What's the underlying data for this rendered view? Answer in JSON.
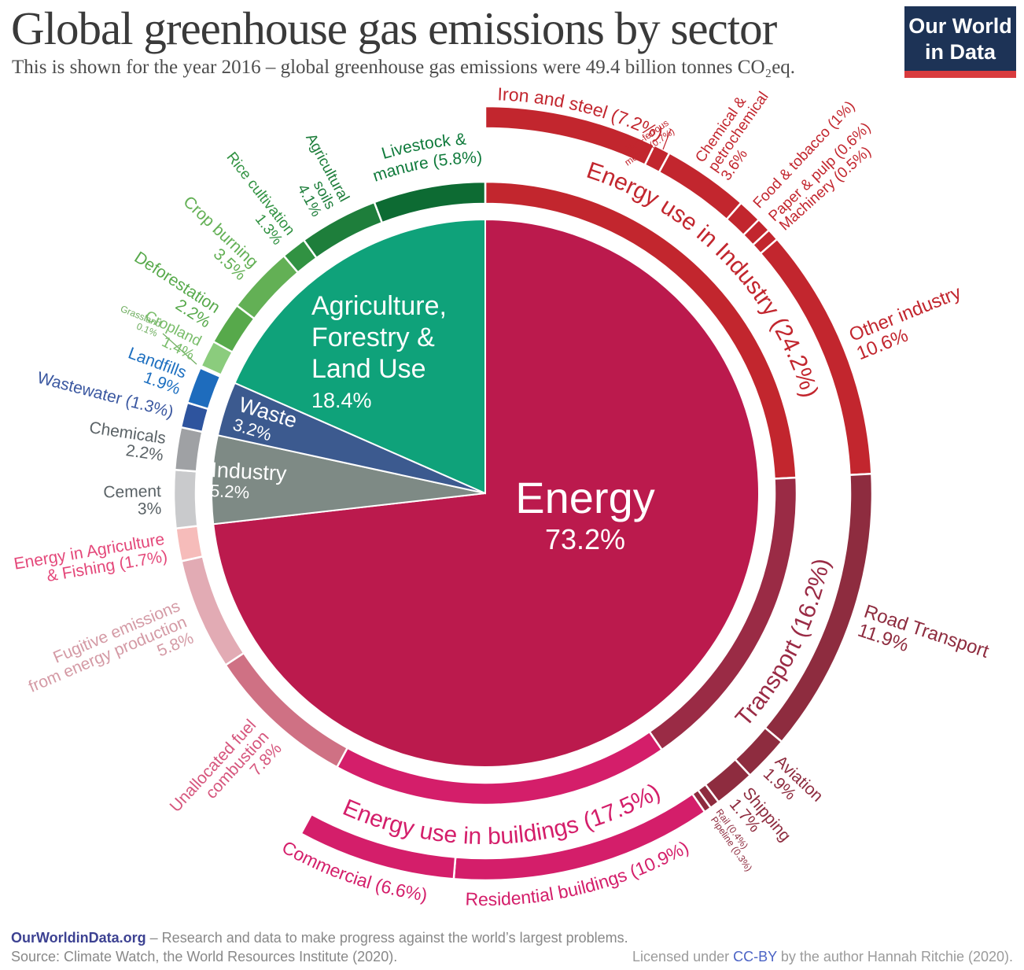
{
  "header": {
    "title": "Global greenhouse gas emissions by sector",
    "subtitle": "This is shown for the year 2016 – global greenhouse gas emissions were 49.4 billion tonnes CO₂eq.",
    "logo_line1": "Our World",
    "logo_line2": "in Data"
  },
  "footer": {
    "site": "OurWorldinData.org",
    "tagline": " – Research and data to make progress against the world’s largest problems.",
    "source": "Source: Climate Watch, the World Resources Institute (2020).",
    "license_pre": "Licensed under ",
    "license_link": "CC-BY",
    "license_post": " by the author Hannah Ritchie (2020)."
  },
  "chart_data": {
    "type": "pie",
    "title": "Global greenhouse gas emissions by sector",
    "year": "2016",
    "total": "49.4 billion tonnes CO₂eq",
    "unit": "%",
    "inner_sectors": [
      {
        "id": "energy",
        "label": "Energy",
        "value": 73.2,
        "color": "#bb1a4d",
        "display": [
          "Energy",
          "73.2%"
        ]
      },
      {
        "id": "industry",
        "label": "Industry",
        "value": 5.2,
        "color": "#7e8a85",
        "display": [
          "Industry",
          "5.2%"
        ]
      },
      {
        "id": "waste",
        "label": "Waste",
        "value": 3.2,
        "color": "#3c5a8f",
        "display": [
          "Waste",
          "3.2%"
        ]
      },
      {
        "id": "afolu",
        "label": "Agriculture, Forestry & Land Use",
        "value": 18.4,
        "color": "#0fa27a",
        "display": [
          "Agriculture,",
          "Forestry &",
          "Land Use",
          "18.4%"
        ]
      }
    ],
    "middle_ring": [
      {
        "id": "energy_industry",
        "group": "Energy",
        "label": "Energy use in Industry",
        "value": 24.2,
        "color": "#c2262e",
        "display": [
          "Energy use in Industry (24.2%)"
        ]
      },
      {
        "id": "transport",
        "group": "Energy",
        "label": "Transport",
        "value": 16.2,
        "color": "#9a2b45",
        "display": [
          "Transport (16.2%)"
        ]
      },
      {
        "id": "buildings",
        "group": "Energy",
        "label": "Energy use in buildings",
        "value": 17.5,
        "color": "#d41e6a",
        "display": [
          "Energy use in buildings (17.5%)"
        ]
      },
      {
        "id": "unallocated",
        "group": "Energy",
        "label": "Unallocated fuel combustion",
        "value": 7.8,
        "color": "#cf7184",
        "text_color": "#d6567d",
        "display": [
          "Unallocated fuel",
          "combustion",
          "7.8%"
        ]
      },
      {
        "id": "fugitive",
        "group": "Energy",
        "label": "Fugitive emissions from energy production",
        "value": 5.8,
        "color": "#e2abb4",
        "text_color": "#d49aa5",
        "display": [
          "Fugitive emissions",
          "from energy production",
          "5.8%"
        ]
      },
      {
        "id": "energy_ag_fishing",
        "group": "Energy",
        "label": "Energy in Agriculture & Fishing",
        "value": 1.7,
        "color": "#f6bcba",
        "text_color": "#e4487a",
        "display": [
          "Energy in Agriculture",
          "& Fishing (1.7%)"
        ]
      },
      {
        "id": "cement",
        "group": "Industry",
        "label": "Cement",
        "value": 3,
        "color": "#c9cacc",
        "text_color": "#5a6266",
        "display": [
          "Cement",
          "3%"
        ]
      },
      {
        "id": "chemicals",
        "group": "Industry",
        "label": "Chemicals",
        "value": 2.2,
        "color": "#9fa1a4",
        "text_color": "#5a6266",
        "display": [
          "Chemicals",
          "2.2%"
        ]
      },
      {
        "id": "wastewater",
        "group": "Waste",
        "label": "Wastewater",
        "value": 1.3,
        "color": "#2e549e",
        "text_color": "#3a57a0",
        "display": [
          "Wastewater (1.3%)"
        ]
      },
      {
        "id": "landfills",
        "group": "Waste",
        "label": "Landfills",
        "value": 1.9,
        "color": "#1e6cbd",
        "text_color": "#1d6fc0",
        "display": [
          "Landfills",
          "1.9%"
        ]
      },
      {
        "id": "grassland",
        "group": "Agriculture, Forestry & Land Use",
        "label": "Grassland",
        "value": 0.1,
        "color": "#b7dfae",
        "text_color": "#6fae60",
        "display": [
          "Grassland",
          "0.1%"
        ]
      },
      {
        "id": "cropland",
        "group": "Agriculture, Forestry & Land Use",
        "label": "Cropland",
        "value": 1.4,
        "color": "#8bcc7d",
        "text_color": "#79bd6a",
        "display": [
          "Cropland",
          "1.4%"
        ]
      },
      {
        "id": "deforestation",
        "group": "Agriculture, Forestry & Land Use",
        "label": "Deforestation",
        "value": 2.2,
        "color": "#57a94b",
        "display": [
          "Deforestation",
          "2.2%"
        ]
      },
      {
        "id": "crop_burning",
        "group": "Agriculture, Forestry & Land Use",
        "label": "Crop burning",
        "value": 3.5,
        "color": "#63b055",
        "display": [
          "Crop burning",
          "3.5%"
        ]
      },
      {
        "id": "rice",
        "group": "Agriculture, Forestry & Land Use",
        "label": "Rice cultivation",
        "value": 1.3,
        "color": "#319242",
        "display": [
          "Rice cultivation",
          "1.3%"
        ]
      },
      {
        "id": "ag_soils",
        "group": "Agriculture, Forestry & Land Use",
        "label": "Agricultural soils",
        "value": 4.1,
        "color": "#1e7e3b",
        "display": [
          "Agricultural",
          "soils",
          "4.1%"
        ]
      },
      {
        "id": "livestock",
        "group": "Agriculture, Forestry & Land Use",
        "label": "Livestock & manure",
        "value": 5.8,
        "color": "#0d6b33",
        "text_color": "#0f7a3b",
        "display": [
          "Livestock &",
          "manure (5.8%)"
        ]
      }
    ],
    "outer_ring": [
      {
        "id": "iron_steel",
        "group": "Energy use in Industry",
        "label": "Iron and steel",
        "value": 7.2,
        "color": "#c2262e",
        "display": [
          "Iron and steel (7.2%)"
        ]
      },
      {
        "id": "nonferrous",
        "group": "Energy use in Industry",
        "label": "Non-ferrous metals",
        "value": 0.7,
        "color": "#c2262e",
        "display": [
          "Non-ferrous",
          "metals (0.7%)"
        ]
      },
      {
        "id": "chem_petro",
        "group": "Energy use in Industry",
        "label": "Chemical & petrochemical",
        "value": 3.6,
        "color": "#c2262e",
        "display": [
          "Chemical &",
          "petrochemical",
          "3.6%"
        ]
      },
      {
        "id": "food_tobacco",
        "group": "Energy use in Industry",
        "label": "Food & tobacco",
        "value": 1,
        "color": "#c2262e",
        "display": [
          "Food & tobacco (1%)"
        ]
      },
      {
        "id": "paper_pulp",
        "group": "Energy use in Industry",
        "label": "Paper & pulp",
        "value": 0.6,
        "color": "#c2262e",
        "display": [
          "Paper & pulp (0.6%)"
        ]
      },
      {
        "id": "machinery",
        "group": "Energy use in Industry",
        "label": "Machinery",
        "value": 0.5,
        "color": "#c2262e",
        "display": [
          "Machinery (0.5%)"
        ]
      },
      {
        "id": "other_industry",
        "group": "Energy use in Industry",
        "label": "Other industry",
        "value": 10.6,
        "color": "#c2262e",
        "display": [
          "Other industry",
          "10.6%"
        ]
      },
      {
        "id": "road_transport",
        "group": "Transport",
        "label": "Road Transport",
        "value": 11.9,
        "color": "#8e2c3f",
        "display": [
          "Road Transport",
          "11.9%"
        ]
      },
      {
        "id": "aviation",
        "group": "Transport",
        "label": "Aviation",
        "value": 1.9,
        "color": "#8e2c3f",
        "display": [
          "Aviation",
          "1.9%"
        ]
      },
      {
        "id": "shipping",
        "group": "Transport",
        "label": "Shipping",
        "value": 1.7,
        "color": "#8e2c3f",
        "display": [
          "Shipping",
          "1.7%"
        ]
      },
      {
        "id": "rail",
        "group": "Transport",
        "label": "Rail",
        "value": 0.4,
        "color": "#8e2c3f",
        "display": [
          "Rail (0.4%)"
        ]
      },
      {
        "id": "pipeline",
        "group": "Transport",
        "label": "Pipeline",
        "value": 0.3,
        "color": "#8e2c3f",
        "display": [
          "Pipeline (0.3%)"
        ]
      },
      {
        "id": "residential",
        "group": "Energy use in buildings",
        "label": "Residential buildings",
        "value": 10.9,
        "color": "#d41e6a",
        "display": [
          "Residential buildings (10.9%)"
        ]
      },
      {
        "id": "commercial",
        "group": "Energy use in buildings",
        "label": "Commercial",
        "value": 6.6,
        "color": "#d41e6a",
        "display": [
          "Commercial  (6.6%)"
        ]
      }
    ]
  }
}
